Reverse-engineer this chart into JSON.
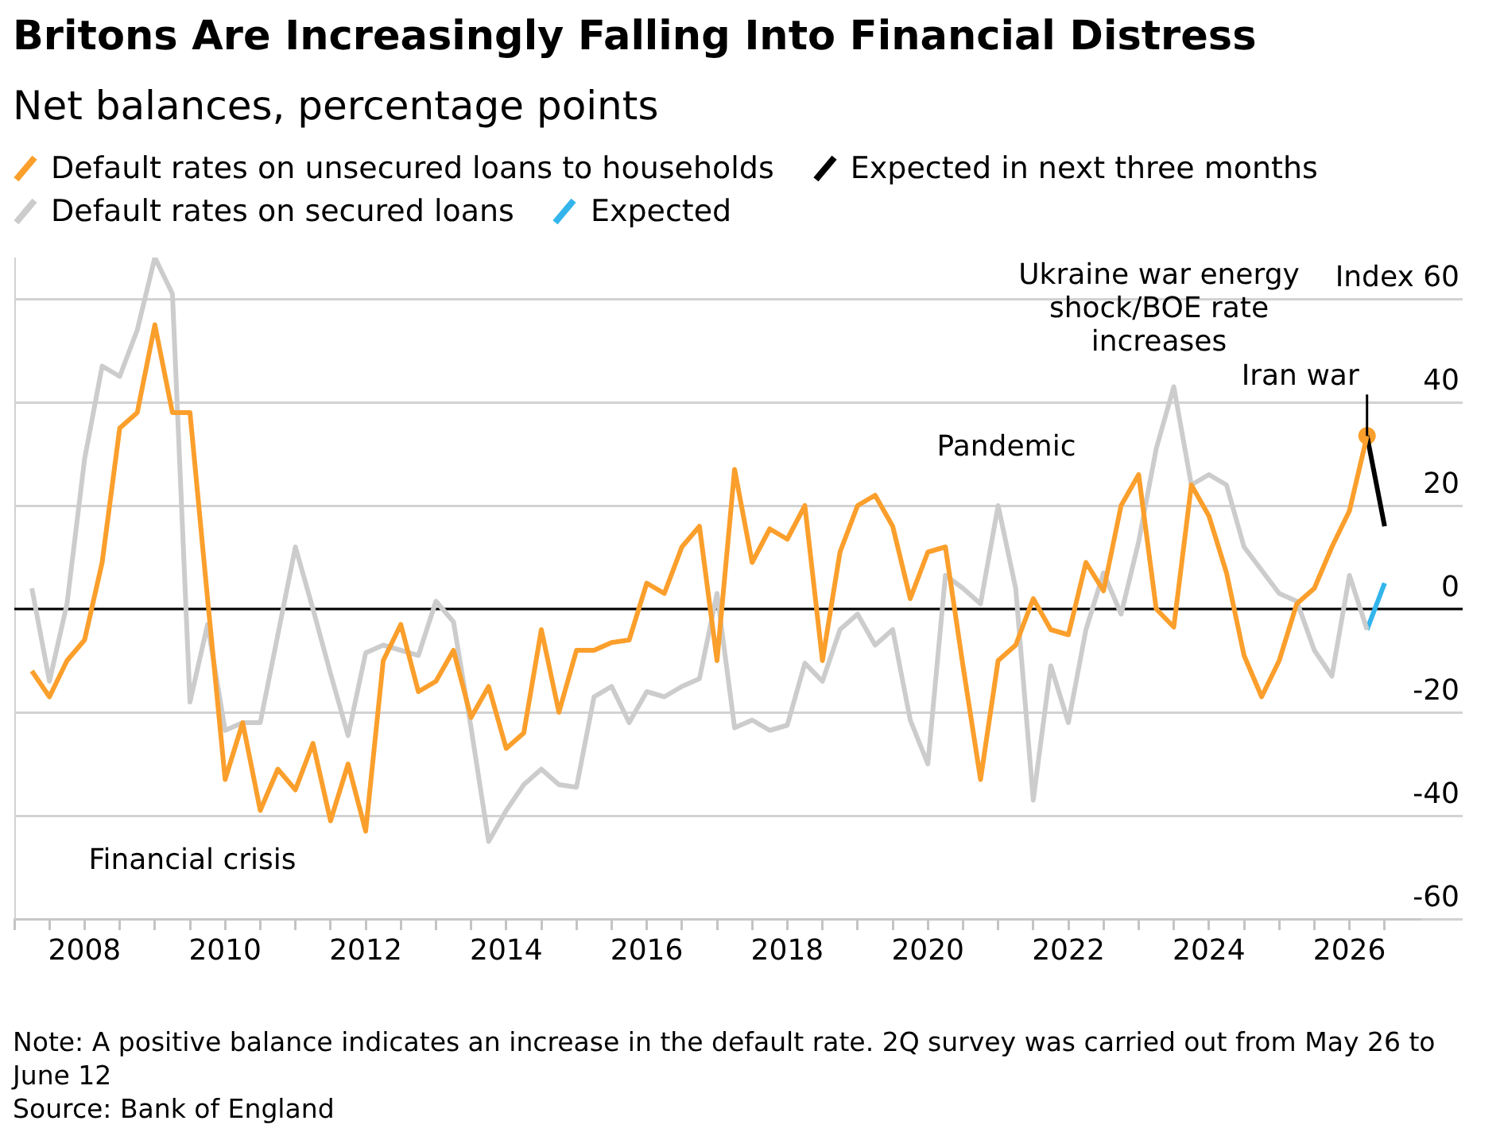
{
  "chart_data": {
    "type": "line",
    "title": "Britons Are Increasingly Falling Into Financial Distress",
    "subtitle": "Net balances, percentage points",
    "x": [
      "2007-04",
      "2007-07",
      "2007-10",
      "2008-01",
      "2008-04",
      "2008-07",
      "2008-10",
      "2009-01",
      "2009-04",
      "2009-07",
      "2009-10",
      "2010-01",
      "2010-04",
      "2010-07",
      "2010-10",
      "2011-01",
      "2011-04",
      "2011-07",
      "2011-10",
      "2012-01",
      "2012-04",
      "2012-07",
      "2012-10",
      "2013-01",
      "2013-04",
      "2013-07",
      "2013-10",
      "2014-01",
      "2014-04",
      "2014-07",
      "2014-10",
      "2015-01",
      "2015-04",
      "2015-07",
      "2015-10",
      "2016-01",
      "2016-04",
      "2016-07",
      "2016-10",
      "2017-01",
      "2017-04",
      "2017-07",
      "2017-10",
      "2018-01",
      "2018-04",
      "2018-07",
      "2018-10",
      "2019-01",
      "2019-04",
      "2019-07",
      "2019-10",
      "2020-01",
      "2020-04",
      "2020-07",
      "2020-10",
      "2021-01",
      "2021-04",
      "2021-07",
      "2021-10",
      "2022-01",
      "2022-04",
      "2022-07",
      "2022-10",
      "2023-01",
      "2023-04",
      "2023-07",
      "2023-10",
      "2024-01",
      "2024-04",
      "2024-07",
      "2024-10",
      "2025-01",
      "2025-04",
      "2025-07",
      "2025-10",
      "2026-01",
      "2026-04"
    ],
    "series": [
      {
        "name": "Default rates on unsecured loans to households",
        "color": "#fb9f2c",
        "values": [
          -12,
          -17,
          -10,
          -6,
          9,
          35,
          38,
          55,
          38,
          38,
          2,
          -33,
          -22,
          -39,
          -31,
          -35,
          -26,
          -41,
          -30,
          -43,
          -10,
          -3,
          -16,
          -14,
          -8,
          -21,
          -15,
          -27,
          -24,
          -4,
          -20,
          -8,
          -8,
          -6.5,
          -6,
          5,
          3,
          12,
          16,
          -10,
          27,
          9,
          15.5,
          13.5,
          20,
          -10,
          11,
          20,
          22,
          16,
          2,
          11,
          12,
          -11,
          -33,
          -10,
          -7,
          2,
          -4,
          -5,
          9,
          3.5,
          20,
          26,
          0,
          -3.5,
          24,
          18,
          7,
          -9,
          -17,
          -10,
          1,
          4,
          12,
          19,
          33.5
        ]
      },
      {
        "name": "Expected in next three months",
        "color": "#000000",
        "x": [
          "2026-04",
          "2026-07"
        ],
        "values": [
          33.5,
          16
        ]
      },
      {
        "name": "Default rates on secured loans",
        "color": "#cccccc",
        "values": [
          4,
          -14,
          1,
          29,
          47,
          45,
          54,
          68,
          61,
          -18,
          -3,
          -23.5,
          -22,
          -22,
          -5,
          12,
          0,
          -12.5,
          -24.5,
          -8.5,
          -7,
          -8,
          -9,
          1.5,
          -2.5,
          -23,
          -45,
          -39,
          -34,
          -31,
          -34,
          -34.5,
          -17,
          -15,
          -22,
          -16,
          -17,
          -15,
          -13.5,
          3,
          -23,
          -21.5,
          -23.5,
          -22.5,
          -10.5,
          -14,
          -4,
          -1,
          -7,
          -4,
          -21.5,
          -30,
          6.5,
          4,
          1,
          20,
          4,
          -37,
          -11,
          -22,
          -4,
          7,
          -1,
          13,
          31,
          43,
          24,
          26,
          24,
          12,
          7.5,
          3,
          1.5,
          -8,
          -13,
          6.5,
          -4
        ]
      },
      {
        "name": "Expected",
        "color": "#33b5eb",
        "x": [
          "2026-04",
          "2026-07"
        ],
        "values": [
          -4,
          5
        ]
      },
      {
        "type": "scatter",
        "color": "#fb9f2c",
        "x": [
          "2026-04"
        ],
        "values": [
          33.5
        ],
        "marker": "circle"
      }
    ],
    "xlim": [
      "2007-01",
      "2027-01"
    ],
    "xticks": [
      {
        "value": "2007-01",
        "label": null
      },
      {
        "value": "2007-07",
        "label": null
      },
      "2008",
      {
        "value": "2008-07",
        "label": null
      },
      {
        "value": "2009",
        "label": null
      },
      {
        "value": "2009-07",
        "label": null
      },
      "2010",
      {
        "value": "2010-07",
        "label": null
      },
      {
        "value": "2011",
        "label": null
      },
      {
        "value": "2011-07",
        "label": null
      },
      "2012",
      {
        "value": "2012-07",
        "label": null
      },
      {
        "value": "2013",
        "label": null
      },
      {
        "value": "2013-07",
        "label": null
      },
      "2014",
      {
        "value": "2014-07",
        "label": null
      },
      {
        "value": "2015",
        "label": null
      },
      {
        "value": "2015-07",
        "label": null
      },
      "2016",
      {
        "value": "2016-07",
        "label": null
      },
      {
        "value": "2017",
        "label": null
      },
      {
        "value": "2017-07",
        "label": null
      },
      "2018",
      {
        "value": "2018-07",
        "label": null
      },
      {
        "value": "2019",
        "label": null
      },
      {
        "value": "2019-07",
        "label": null
      },
      "2020",
      {
        "value": "2020-07",
        "label": null
      },
      {
        "value": "2021",
        "label": null
      },
      {
        "value": "2021-07",
        "label": null
      },
      "2022",
      {
        "value": "2022-07",
        "label": null
      },
      {
        "value": "2023",
        "label": null
      },
      {
        "value": "2023-07",
        "label": null
      },
      "2024",
      {
        "value": "2024-07",
        "label": null
      },
      {
        "value": "2025",
        "label": null
      },
      {
        "value": "2025-07",
        "label": null
      },
      "2026",
      {
        "value": "2026-07",
        "label": null
      }
    ],
    "ylim": [
      -60,
      68
    ],
    "yticks": [
      {
        "value": 60,
        "label": "Index 60"
      },
      40,
      20,
      0,
      -20,
      -40,
      -60
    ],
    "grid": "y",
    "legend": "top left",
    "ref_lines": [
      {
        "axis": "y",
        "value": 0,
        "color": "#000000"
      }
    ],
    "annotations": [
      "Financial crisis",
      "Pandemic",
      "Ukraine war energy shock/BOE rate increases",
      {
        "text": "Iran war",
        "x": "2026-04",
        "y": 33.5
      },
      "Note: A positive balance indicates an increase in the default rate. 2Q survey was carried out from May 26 to June 12",
      "Source: Bank of England"
    ]
  }
}
